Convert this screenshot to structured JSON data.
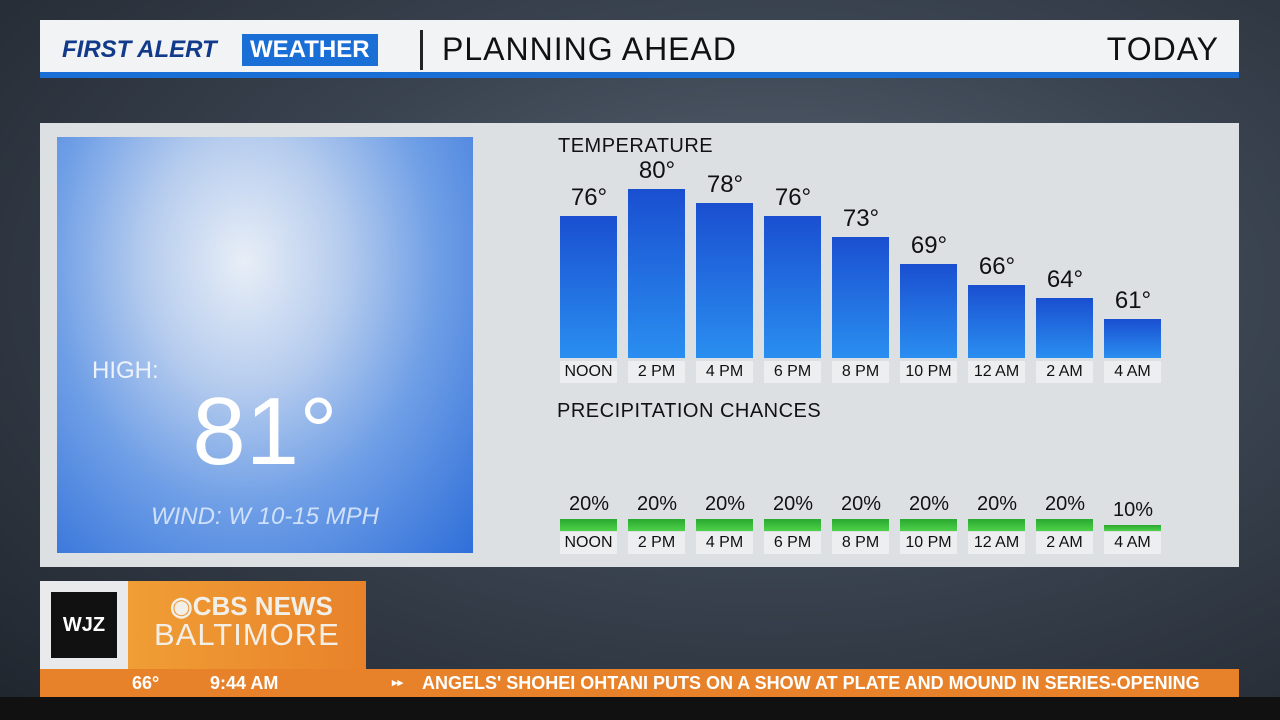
{
  "header": {
    "brand_first": "FIRST ALERT",
    "brand_weather": "WEATHER",
    "title": "PLANNING AHEAD",
    "period": "TODAY"
  },
  "summary": {
    "high_label": "HIGH:",
    "high_value": "81°",
    "wind": "WIND: W 10-15 MPH"
  },
  "chart_data": [
    {
      "type": "bar",
      "title": "TEMPERATURE",
      "categories": [
        "NOON",
        "2 PM",
        "4 PM",
        "6 PM",
        "8 PM",
        "10 PM",
        "12 AM",
        "2 AM",
        "4 AM"
      ],
      "values": [
        76,
        80,
        78,
        76,
        73,
        69,
        66,
        64,
        61
      ],
      "labels": [
        "76°",
        "80°",
        "78°",
        "76°",
        "73°",
        "69°",
        "66°",
        "64°",
        "61°"
      ],
      "color": "#1a5fd8"
    },
    {
      "type": "bar",
      "title": "PRECIPITATION CHANCES",
      "categories": [
        "NOON",
        "2 PM",
        "4 PM",
        "6 PM",
        "8 PM",
        "10 PM",
        "12 AM",
        "2 AM",
        "4 AM"
      ],
      "values": [
        20,
        20,
        20,
        20,
        20,
        20,
        20,
        20,
        10
      ],
      "labels": [
        "20%",
        "20%",
        "20%",
        "20%",
        "20%",
        "20%",
        "20%",
        "20%",
        "10%"
      ],
      "color": "#3cc03c"
    }
  ],
  "station": {
    "call": "WJZ",
    "network": "CBS NEWS",
    "city": "BALTIMORE"
  },
  "ticker": {
    "temp": "66°",
    "time": "9:44 AM",
    "headline": "ANGELS' SHOHEI OHTANI PUTS ON A SHOW AT PLATE AND MOUND IN SERIES-OPENING"
  }
}
